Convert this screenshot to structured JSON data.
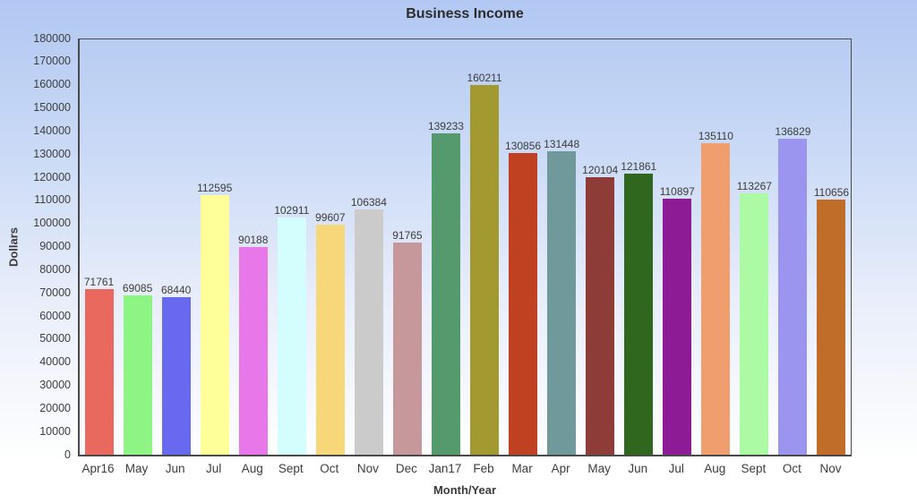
{
  "chart_data": {
    "type": "bar",
    "title": "Business Income",
    "xlabel": "Month/Year",
    "ylabel": "Dollars",
    "ylim": [
      0,
      180000
    ],
    "ytick_step": 10000,
    "grid": false,
    "legend": false,
    "value_labels_shown": true,
    "categories": [
      "Apr16",
      "May",
      "Jun",
      "Jul",
      "Aug",
      "Sept",
      "Oct",
      "Nov",
      "Dec",
      "Jan17",
      "Feb",
      "Mar",
      "Apr",
      "May",
      "Jun",
      "Jul",
      "Aug",
      "Sept",
      "Oct",
      "Nov"
    ],
    "values": [
      71761,
      69085,
      68440,
      112595,
      90188,
      102911,
      99607,
      106384,
      91765,
      139233,
      160211,
      130856,
      131448,
      120104,
      121861,
      110897,
      135110,
      113267,
      136829,
      110656
    ],
    "bar_colors": [
      "#e9695f",
      "#8ef584",
      "#6969f0",
      "#ffff99",
      "#e878ea",
      "#d4fdfd",
      "#f6d77a",
      "#cbcbcb",
      "#c7989b",
      "#549a6c",
      "#a29a31",
      "#bf4122",
      "#70999b",
      "#8d3c37",
      "#2e671d",
      "#8e1b96",
      "#f09e6d",
      "#adfaa5",
      "#9b95f0",
      "#c06d29"
    ]
  },
  "colors": {
    "background_top": "#b2c8f2",
    "background_bottom": "#ffffff",
    "axis_line": "#4a4a4a",
    "label_text": "#3d3d3d"
  }
}
